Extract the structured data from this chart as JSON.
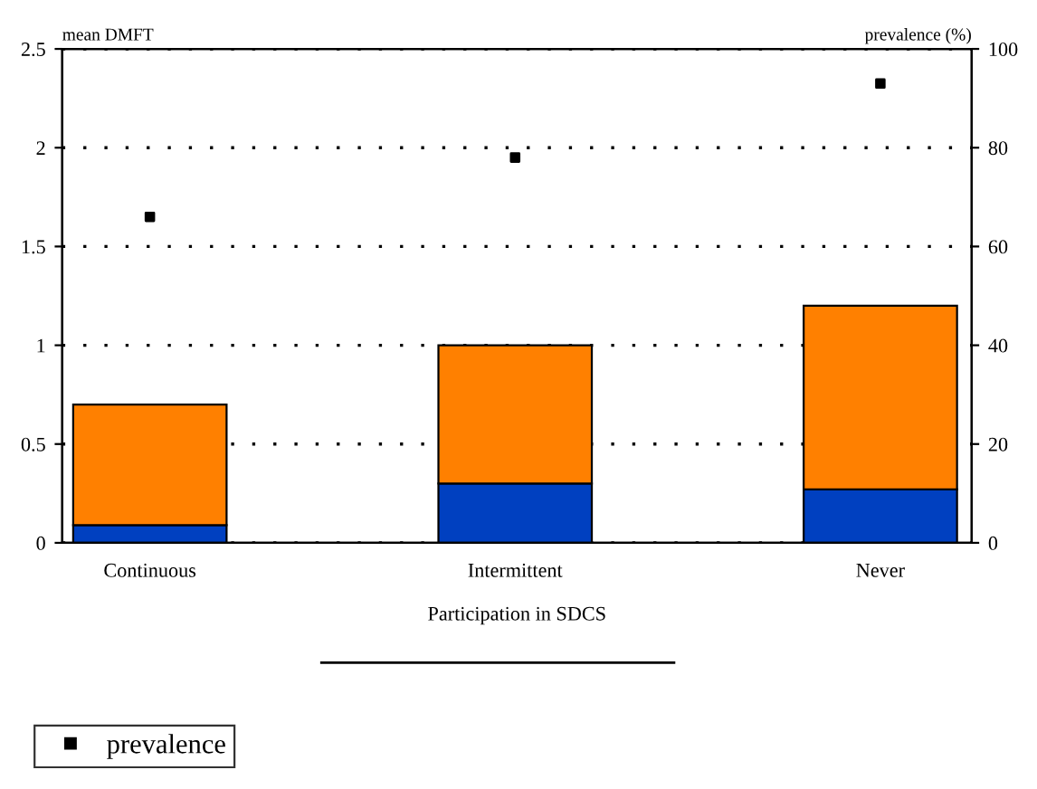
{
  "chart_data": {
    "type": "bar",
    "stacked": true,
    "xlabel": "Participation in SDCS",
    "ylabel": "mean DMFT",
    "y2label": "prevalence (%)",
    "categories": [
      "Continuous",
      "Intermittent",
      "Never"
    ],
    "series": [
      {
        "color": "#0040c0",
        "values": [
          0.09,
          0.3,
          0.27
        ]
      },
      {
        "color": "#ff8000",
        "values": [
          0.61,
          0.7,
          0.93
        ]
      },
      {
        "name": "prevalence",
        "type": "scatter",
        "axis": "y2",
        "color": "#000000",
        "marker": "square",
        "values": [
          66,
          78,
          93
        ]
      }
    ],
    "ylim": [
      0,
      2.5
    ],
    "yticks": [
      0,
      0.5,
      1,
      1.5,
      2,
      2.5
    ],
    "y2lim": [
      0,
      100
    ],
    "y2ticks": [
      0,
      20,
      40,
      60,
      80,
      100
    ],
    "grid": "y",
    "legend": "bottom left"
  }
}
